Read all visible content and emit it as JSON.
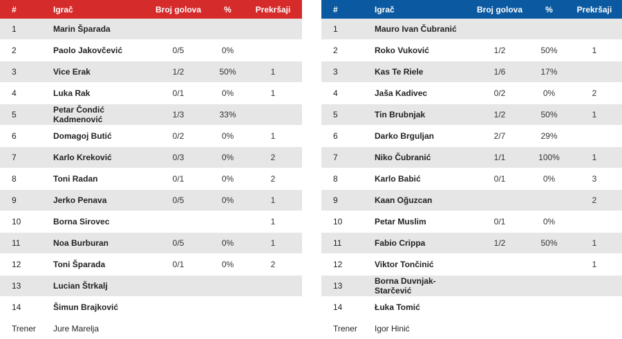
{
  "headers": {
    "num": "#",
    "name": "Igrač",
    "goals": "Broj golova",
    "pct": "%",
    "fouls": "Prekršaji"
  },
  "teams": [
    {
      "header_color": "#d62b2b",
      "rows": [
        {
          "num": "1",
          "name": "Marin Šparada",
          "goals": "",
          "pct": "",
          "fouls": ""
        },
        {
          "num": "2",
          "name": "Paolo Jakovčević",
          "goals": "0/5",
          "pct": "0%",
          "fouls": ""
        },
        {
          "num": "3",
          "name": "Vice Erak",
          "goals": "1/2",
          "pct": "50%",
          "fouls": "1"
        },
        {
          "num": "4",
          "name": "Luka Rak",
          "goals": "0/1",
          "pct": "0%",
          "fouls": "1"
        },
        {
          "num": "5",
          "name": "Petar Čondić Kadmenović",
          "goals": "1/3",
          "pct": "33%",
          "fouls": ""
        },
        {
          "num": "6",
          "name": "Domagoj Butić",
          "goals": "0/2",
          "pct": "0%",
          "fouls": "1"
        },
        {
          "num": "7",
          "name": "Karlo Kreković",
          "goals": "0/3",
          "pct": "0%",
          "fouls": "2"
        },
        {
          "num": "8",
          "name": "Toni Radan",
          "goals": "0/1",
          "pct": "0%",
          "fouls": "2"
        },
        {
          "num": "9",
          "name": "Jerko Penava",
          "goals": "0/5",
          "pct": "0%",
          "fouls": "1"
        },
        {
          "num": "10",
          "name": "Borna Sirovec",
          "goals": "",
          "pct": "",
          "fouls": "1"
        },
        {
          "num": "11",
          "name": "Noa Burburan",
          "goals": "0/5",
          "pct": "0%",
          "fouls": "1"
        },
        {
          "num": "12",
          "name": "Toni Šparada",
          "goals": "0/1",
          "pct": "0%",
          "fouls": "2"
        },
        {
          "num": "13",
          "name": "Lucian Štrkalj",
          "goals": "",
          "pct": "",
          "fouls": ""
        },
        {
          "num": "14",
          "name": "Šimun Brajković",
          "goals": "",
          "pct": "",
          "fouls": ""
        }
      ],
      "coach_label": "Trener",
      "coach_name": "Jure Marelja"
    },
    {
      "header_color": "#0b5aa1",
      "rows": [
        {
          "num": "1",
          "name": "Mauro Ivan Čubranić",
          "goals": "",
          "pct": "",
          "fouls": ""
        },
        {
          "num": "2",
          "name": "Roko Vuković",
          "goals": "1/2",
          "pct": "50%",
          "fouls": "1"
        },
        {
          "num": "3",
          "name": "Kas Te Riele",
          "goals": "1/6",
          "pct": "17%",
          "fouls": ""
        },
        {
          "num": "4",
          "name": "Jaša Kadivec",
          "goals": "0/2",
          "pct": "0%",
          "fouls": "2"
        },
        {
          "num": "5",
          "name": "Tin Brubnjak",
          "goals": "1/2",
          "pct": "50%",
          "fouls": "1"
        },
        {
          "num": "6",
          "name": "Darko Brguljan",
          "goals": "2/7",
          "pct": "29%",
          "fouls": ""
        },
        {
          "num": "7",
          "name": "Niko Čubranić",
          "goals": "1/1",
          "pct": "100%",
          "fouls": "1"
        },
        {
          "num": "8",
          "name": "Karlo Babić",
          "goals": "0/1",
          "pct": "0%",
          "fouls": "3"
        },
        {
          "num": "9",
          "name": "Kaan Oğuzcan",
          "goals": "",
          "pct": "",
          "fouls": "2"
        },
        {
          "num": "10",
          "name": "Petar Muslim",
          "goals": "0/1",
          "pct": "0%",
          "fouls": ""
        },
        {
          "num": "11",
          "name": "Fabio Crippa",
          "goals": "1/2",
          "pct": "50%",
          "fouls": "1"
        },
        {
          "num": "12",
          "name": "Viktor Tončinić",
          "goals": "",
          "pct": "",
          "fouls": "1"
        },
        {
          "num": "13",
          "name": "Borna Duvnjak-Starčević",
          "goals": "",
          "pct": "",
          "fouls": ""
        },
        {
          "num": "14",
          "name": "Łuka Tomić",
          "goals": "",
          "pct": "",
          "fouls": ""
        }
      ],
      "coach_label": "Trener",
      "coach_name": "Igor Hinić"
    }
  ]
}
